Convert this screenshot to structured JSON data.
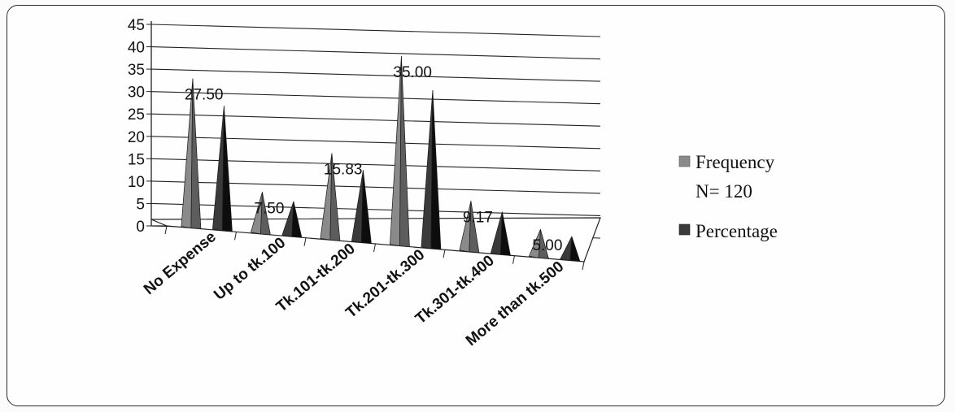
{
  "chart_data": {
    "type": "bar",
    "style": "3d-pyramid",
    "categories": [
      "No Expense",
      "Up to tk.100",
      "Tk.101-tk.200",
      "Tk.201-tk.300",
      "Tk.301-tk.400",
      "More than tk.500"
    ],
    "series": [
      {
        "name": "Frequency",
        "name_line2": "N= 120",
        "values": [
          33,
          9,
          19,
          42,
          11,
          6
        ],
        "color": "#8a8a8a"
      },
      {
        "name": "Percentage",
        "values": [
          27.5,
          7.5,
          15.83,
          35.0,
          9.17,
          5.0
        ],
        "color": "#3a3a3a"
      }
    ],
    "data_labels": [
      "27.50",
      "7.50",
      "15.83",
      "35.00",
      "9.17",
      "5.00"
    ],
    "yticks": [
      "0",
      "5",
      "10",
      "15",
      "20",
      "25",
      "30",
      "35",
      "40",
      "45"
    ],
    "ylim": [
      0,
      45
    ],
    "grid": true,
    "legend_position": "right"
  }
}
